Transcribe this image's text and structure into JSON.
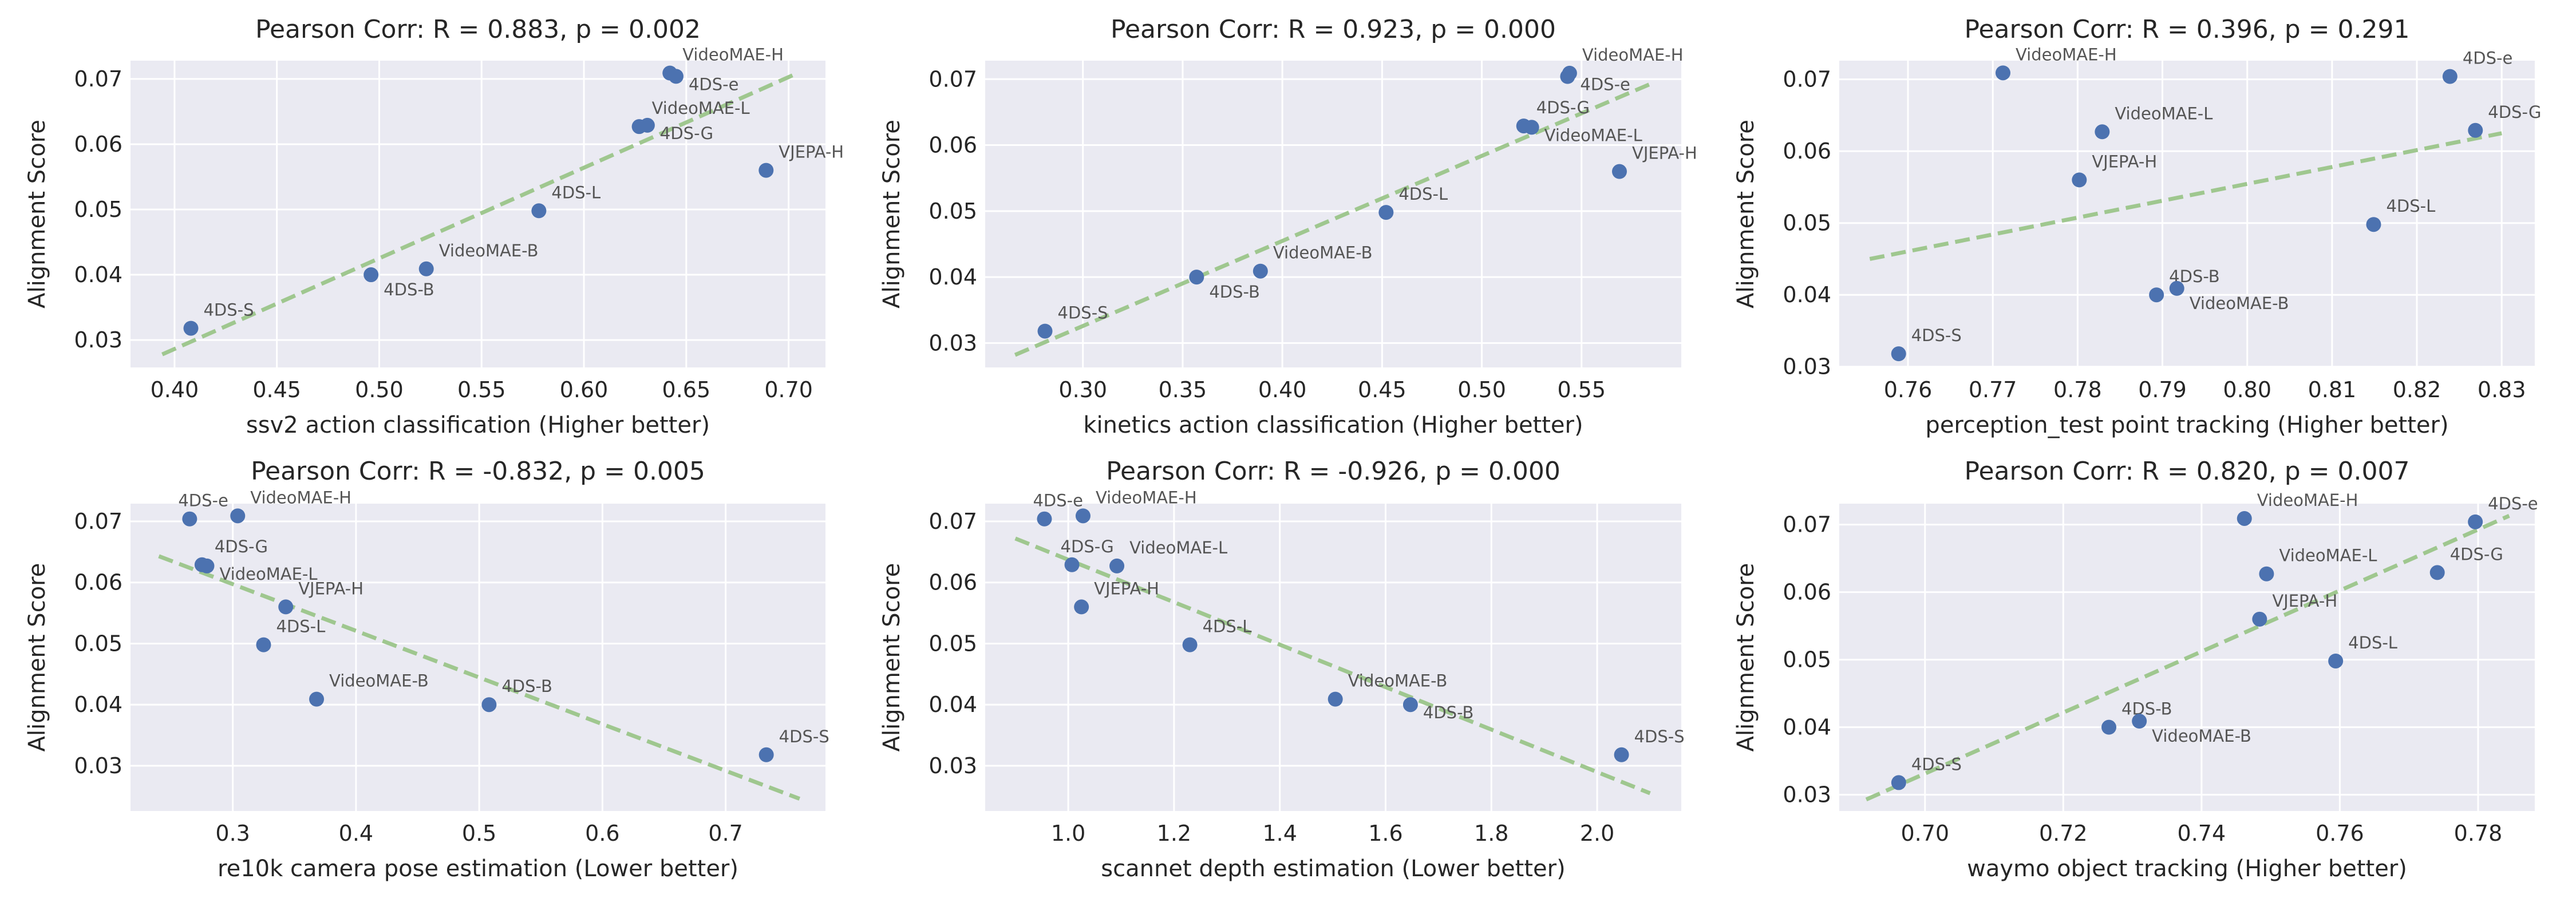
{
  "style": {
    "background": "#eaeaf2",
    "grid": "#ffffff",
    "point_color": "#4c72b0",
    "fit_line_color": "#9fc78f"
  },
  "chart_data": [
    {
      "type": "scatter",
      "title": "Pearson Corr: R = 0.883, p = 0.002",
      "xlabel": "ssv2 action classification (Higher better)",
      "ylabel": "Alignment Score",
      "xlim": [
        0.3785,
        0.718
      ],
      "ylim": [
        0.0258,
        0.0728
      ],
      "xticks": [
        "0.40",
        "0.45",
        "0.50",
        "0.55",
        "0.60",
        "0.65",
        "0.70"
      ],
      "yticks": [
        "0.03",
        "0.04",
        "0.05",
        "0.06",
        "0.07"
      ],
      "grid": true,
      "points": [
        {
          "label": "VideoMAE-H",
          "x": 0.642,
          "y": 0.0709
        },
        {
          "label": "4DS-e",
          "x": 0.645,
          "y": 0.0704
        },
        {
          "label": "VideoMAE-L",
          "x": 0.627,
          "y": 0.0627
        },
        {
          "label": "4DS-G",
          "x": 0.631,
          "y": 0.0629
        },
        {
          "label": "VJEPA-H",
          "x": 0.689,
          "y": 0.056
        },
        {
          "label": "4DS-L",
          "x": 0.578,
          "y": 0.0498
        },
        {
          "label": "VideoMAE-B",
          "x": 0.523,
          "y": 0.0409
        },
        {
          "label": "4DS-B",
          "x": 0.496,
          "y": 0.04
        },
        {
          "label": "4DS-S",
          "x": 0.408,
          "y": 0.0318
        }
      ],
      "fit_line": [
        [
          0.394,
          0.0278
        ],
        [
          0.703,
          0.0707
        ]
      ]
    },
    {
      "type": "scatter",
      "title": "Pearson Corr: R = 0.923, p = 0.000",
      "xlabel": "kinetics action classification (Higher better)",
      "ylabel": "Alignment Score",
      "xlim": [
        0.251,
        0.6
      ],
      "ylim": [
        0.0263,
        0.0728
      ],
      "xticks": [
        "0.30",
        "0.35",
        "0.40",
        "0.45",
        "0.50",
        "0.55"
      ],
      "yticks": [
        "0.03",
        "0.04",
        "0.05",
        "0.06",
        "0.07"
      ],
      "grid": true,
      "points": [
        {
          "label": "VideoMAE-H",
          "x": 0.544,
          "y": 0.0709
        },
        {
          "label": "4DS-e",
          "x": 0.543,
          "y": 0.0704
        },
        {
          "label": "4DS-G",
          "x": 0.521,
          "y": 0.0629
        },
        {
          "label": "VideoMAE-L",
          "x": 0.525,
          "y": 0.0627
        },
        {
          "label": "VJEPA-H",
          "x": 0.569,
          "y": 0.056
        },
        {
          "label": "4DS-L",
          "x": 0.452,
          "y": 0.0498
        },
        {
          "label": "VideoMAE-B",
          "x": 0.389,
          "y": 0.0409
        },
        {
          "label": "4DS-B",
          "x": 0.357,
          "y": 0.04
        },
        {
          "label": "4DS-S",
          "x": 0.281,
          "y": 0.0318
        }
      ],
      "fit_line": [
        [
          0.266,
          0.0282
        ],
        [
          0.584,
          0.0692
        ]
      ]
    },
    {
      "type": "scatter",
      "title": "Pearson Corr: R = 0.396, p = 0.291",
      "xlabel": "perception_test point tracking (Higher better)",
      "ylabel": "Alignment Score",
      "xlim": [
        0.7519,
        0.8339
      ],
      "ylim": [
        0.0299,
        0.0726
      ],
      "xticks": [
        "0.76",
        "0.77",
        "0.78",
        "0.79",
        "0.80",
        "0.81",
        "0.82",
        "0.83"
      ],
      "yticks": [
        "0.03",
        "0.04",
        "0.05",
        "0.06",
        "0.07"
      ],
      "grid": true,
      "points": [
        {
          "label": "VideoMAE-H",
          "x": 0.7712,
          "y": 0.0709
        },
        {
          "label": "4DS-e",
          "x": 0.8239,
          "y": 0.0704
        },
        {
          "label": "VideoMAE-L",
          "x": 0.7829,
          "y": 0.0627
        },
        {
          "label": "4DS-G",
          "x": 0.8269,
          "y": 0.0629
        },
        {
          "label": "VJEPA-H",
          "x": 0.7802,
          "y": 0.056
        },
        {
          "label": "4DS-L",
          "x": 0.8149,
          "y": 0.0498
        },
        {
          "label": "4DS-B",
          "x": 0.7893,
          "y": 0.04
        },
        {
          "label": "VideoMAE-B",
          "x": 0.7917,
          "y": 0.0409
        },
        {
          "label": "4DS-S",
          "x": 0.7589,
          "y": 0.0318
        }
      ],
      "fit_line": [
        [
          0.7555,
          0.045
        ],
        [
          0.83,
          0.0625
        ]
      ]
    },
    {
      "type": "scatter",
      "title": "Pearson Corr: R = -0.832, p = 0.005",
      "xlabel": "re10k camera pose estimation (Lower better)",
      "ylabel": "Alignment Score",
      "xlim": [
        0.217,
        0.781
      ],
      "ylim": [
        0.0226,
        0.0729
      ],
      "xticks": [
        "0.3",
        "0.4",
        "0.5",
        "0.6",
        "0.7"
      ],
      "yticks": [
        "0.03",
        "0.04",
        "0.05",
        "0.06",
        "0.07"
      ],
      "grid": true,
      "points": [
        {
          "label": "4DS-e",
          "x": 0.265,
          "y": 0.0704
        },
        {
          "label": "VideoMAE-H",
          "x": 0.304,
          "y": 0.0709
        },
        {
          "label": "4DS-G",
          "x": 0.275,
          "y": 0.0629
        },
        {
          "label": "VideoMAE-L",
          "x": 0.279,
          "y": 0.0627
        },
        {
          "label": "VJEPA-H",
          "x": 0.343,
          "y": 0.056
        },
        {
          "label": "4DS-L",
          "x": 0.325,
          "y": 0.0498
        },
        {
          "label": "VideoMAE-B",
          "x": 0.368,
          "y": 0.0409
        },
        {
          "label": "4DS-B",
          "x": 0.508,
          "y": 0.04
        },
        {
          "label": "4DS-S",
          "x": 0.733,
          "y": 0.0318
        }
      ],
      "fit_line": [
        [
          0.24,
          0.0643
        ],
        [
          0.76,
          0.0246
        ]
      ]
    },
    {
      "type": "scatter",
      "title": "Pearson Corr: R = -0.926, p = 0.000",
      "xlabel": "scannet depth estimation (Lower better)",
      "ylabel": "Alignment Score",
      "xlim": [
        0.843,
        2.159
      ],
      "ylim": [
        0.0226,
        0.0729
      ],
      "xticks": [
        "1.0",
        "1.2",
        "1.4",
        "1.6",
        "1.8",
        "2.0"
      ],
      "yticks": [
        "0.03",
        "0.04",
        "0.05",
        "0.06",
        "0.07"
      ],
      "grid": true,
      "points": [
        {
          "label": "4DS-e",
          "x": 0.955,
          "y": 0.0704
        },
        {
          "label": "VideoMAE-H",
          "x": 1.028,
          "y": 0.0709
        },
        {
          "label": "4DS-G",
          "x": 1.007,
          "y": 0.0629
        },
        {
          "label": "VideoMAE-L",
          "x": 1.092,
          "y": 0.0627
        },
        {
          "label": "VJEPA-H",
          "x": 1.025,
          "y": 0.056
        },
        {
          "label": "4DS-L",
          "x": 1.23,
          "y": 0.0498
        },
        {
          "label": "VideoMAE-B",
          "x": 1.505,
          "y": 0.0409
        },
        {
          "label": "4DS-B",
          "x": 1.647,
          "y": 0.04
        },
        {
          "label": "4DS-S",
          "x": 2.046,
          "y": 0.0318
        }
      ],
      "fit_line": [
        [
          0.9,
          0.0672
        ],
        [
          2.1,
          0.0255
        ]
      ]
    },
    {
      "type": "scatter",
      "title": "Pearson Corr: R = 0.820, p = 0.007",
      "xlabel": "waymo object tracking (Higher better)",
      "ylabel": "Alignment Score",
      "xlim": [
        0.6876,
        0.7882
      ],
      "ylim": [
        0.0276,
        0.0731
      ],
      "xticks": [
        "0.70",
        "0.72",
        "0.74",
        "0.76",
        "0.78"
      ],
      "yticks": [
        "0.03",
        "0.04",
        "0.05",
        "0.06",
        "0.07"
      ],
      "grid": true,
      "points": [
        {
          "label": "VideoMAE-H",
          "x": 0.7462,
          "y": 0.0709
        },
        {
          "label": "4DS-e",
          "x": 0.7796,
          "y": 0.0704
        },
        {
          "label": "VideoMAE-L",
          "x": 0.7494,
          "y": 0.0627
        },
        {
          "label": "4DS-G",
          "x": 0.7741,
          "y": 0.0629
        },
        {
          "label": "VJEPA-H",
          "x": 0.7484,
          "y": 0.056
        },
        {
          "label": "4DS-L",
          "x": 0.7594,
          "y": 0.0498
        },
        {
          "label": "4DS-B",
          "x": 0.7266,
          "y": 0.04
        },
        {
          "label": "VideoMAE-B",
          "x": 0.731,
          "y": 0.0409
        },
        {
          "label": "4DS-S",
          "x": 0.6962,
          "y": 0.0318
        }
      ],
      "fit_line": [
        [
          0.6915,
          0.0293
        ],
        [
          0.7845,
          0.0713
        ]
      ]
    }
  ]
}
